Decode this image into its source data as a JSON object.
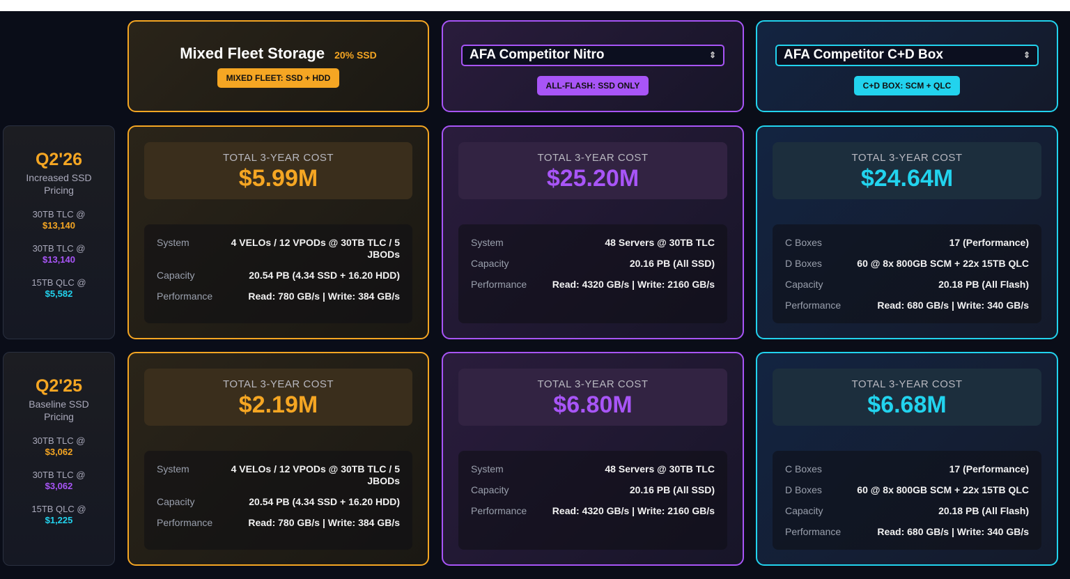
{
  "colors": {
    "mixed": "#f5a623",
    "nitro": "#a855f7",
    "cd": "#22d3ee"
  },
  "columns": [
    {
      "title": "Mixed Fleet Storage",
      "pct": "20% SSD",
      "badge": "MIXED FLEET: SSD + HDD"
    },
    {
      "select": "AFA Competitor Nitro",
      "badge": "ALL-FLASH: SSD ONLY"
    },
    {
      "select": "AFA Competitor C+D Box",
      "badge": "C+D BOX: SCM + QLC"
    }
  ],
  "rows": [
    {
      "quarter": "Q2'26",
      "subtitle": "Increased SSD Pricing",
      "prices": [
        {
          "label": "30TB TLC @",
          "value": "$13,140"
        },
        {
          "label": "30TB TLC @",
          "value": "$13,140"
        },
        {
          "label": "15TB QLC @",
          "value": "$5,582"
        }
      ],
      "cells": [
        {
          "cost_label": "TOTAL 3-YEAR COST",
          "cost": "$5.99M",
          "details": [
            {
              "k": "System",
              "v": "4 VELOs / 12 VPODs @ 30TB TLC / 5 JBODs"
            },
            {
              "k": "Capacity",
              "v": "20.54 PB (4.34 SSD + 16.20 HDD)"
            },
            {
              "k": "Performance",
              "v": "Read: 780 GB/s | Write: 384 GB/s"
            }
          ]
        },
        {
          "cost_label": "TOTAL 3-YEAR COST",
          "cost": "$25.20M",
          "details": [
            {
              "k": "System",
              "v": "48 Servers @ 30TB TLC"
            },
            {
              "k": "Capacity",
              "v": "20.16 PB (All SSD)"
            },
            {
              "k": "Performance",
              "v": "Read: 4320 GB/s | Write: 2160 GB/s"
            }
          ]
        },
        {
          "cost_label": "TOTAL 3-YEAR COST",
          "cost": "$24.64M",
          "details": [
            {
              "k": "C Boxes",
              "v": "17 (Performance)"
            },
            {
              "k": "D Boxes",
              "v": "60 @ 8x 800GB SCM + 22x 15TB QLC"
            },
            {
              "k": "Capacity",
              "v": "20.18 PB (All Flash)"
            },
            {
              "k": "Performance",
              "v": "Read: 680 GB/s | Write: 340 GB/s"
            }
          ]
        }
      ]
    },
    {
      "quarter": "Q2'25",
      "subtitle": "Baseline SSD Pricing",
      "prices": [
        {
          "label": "30TB TLC @",
          "value": "$3,062"
        },
        {
          "label": "30TB TLC @",
          "value": "$3,062"
        },
        {
          "label": "15TB QLC @",
          "value": "$1,225"
        }
      ],
      "cells": [
        {
          "cost_label": "TOTAL 3-YEAR COST",
          "cost": "$2.19M",
          "details": [
            {
              "k": "System",
              "v": "4 VELOs / 12 VPODs @ 30TB TLC / 5 JBODs"
            },
            {
              "k": "Capacity",
              "v": "20.54 PB (4.34 SSD + 16.20 HDD)"
            },
            {
              "k": "Performance",
              "v": "Read: 780 GB/s | Write: 384 GB/s"
            }
          ]
        },
        {
          "cost_label": "TOTAL 3-YEAR COST",
          "cost": "$6.80M",
          "details": [
            {
              "k": "System",
              "v": "48 Servers @ 30TB TLC"
            },
            {
              "k": "Capacity",
              "v": "20.16 PB (All SSD)"
            },
            {
              "k": "Performance",
              "v": "Read: 4320 GB/s | Write: 2160 GB/s"
            }
          ]
        },
        {
          "cost_label": "TOTAL 3-YEAR COST",
          "cost": "$6.68M",
          "details": [
            {
              "k": "C Boxes",
              "v": "17 (Performance)"
            },
            {
              "k": "D Boxes",
              "v": "60 @ 8x 800GB SCM + 22x 15TB QLC"
            },
            {
              "k": "Capacity",
              "v": "20.18 PB (All Flash)"
            },
            {
              "k": "Performance",
              "v": "Read: 680 GB/s | Write: 340 GB/s"
            }
          ]
        }
      ]
    }
  ]
}
